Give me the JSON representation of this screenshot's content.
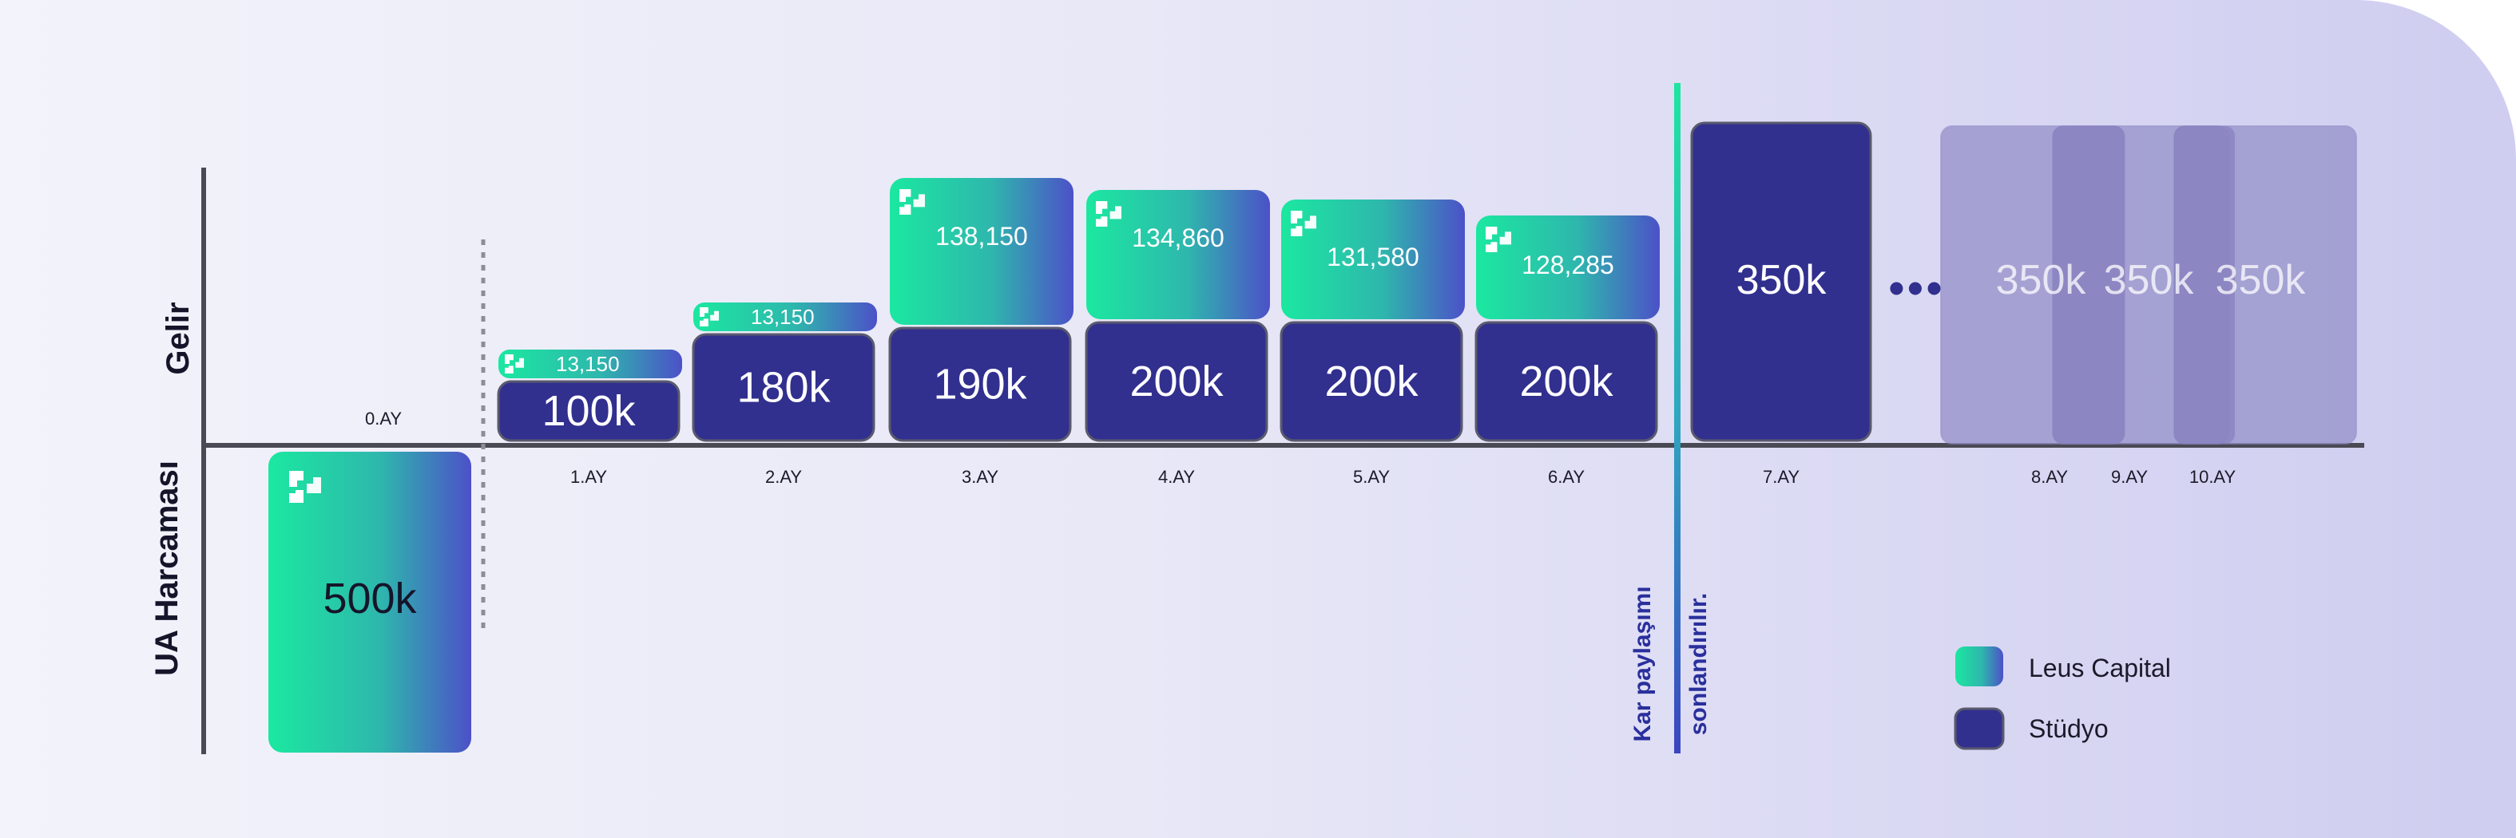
{
  "chart_data": {
    "type": "bar",
    "ylabel_top": "Gelir",
    "ylabel_bottom": "UA Harcaması",
    "categories": [
      "0.AY",
      "1.AY",
      "2.AY",
      "3.AY",
      "4.AY",
      "5.AY",
      "6.AY",
      "7.AY",
      "8.AY",
      "9.AY",
      "10.AY"
    ],
    "ua_spend": {
      "month": "0.AY",
      "label": "500k",
      "value": 500000
    },
    "studio": {
      "labels": [
        "100k",
        "180k",
        "190k",
        "200k",
        "200k",
        "200k",
        "350k",
        "350k",
        "350k",
        "350k"
      ],
      "values": [
        100000,
        180000,
        190000,
        200000,
        200000,
        200000,
        350000,
        350000,
        350000,
        350000
      ]
    },
    "leus": {
      "labels": [
        "13,150",
        "13,150",
        "138,150",
        "134,860",
        "131,580",
        "128,285"
      ],
      "values": [
        13150,
        13150,
        138150,
        134860,
        131580,
        128285
      ]
    },
    "divider_label": [
      "Kar paylaşımı",
      "sonlandırılır."
    ],
    "ellipsis": "•••",
    "legend": [
      {
        "name": "Leus Capital",
        "color": "#1de6a0"
      },
      {
        "name": "Stüdyo",
        "color": "#31308f"
      }
    ],
    "colors": {
      "studio": "#31308f",
      "leus_start": "#1be8a0",
      "leus_end": "#4c51c8",
      "axis": "#4a4a55",
      "divider": "#2bd6b0"
    }
  }
}
